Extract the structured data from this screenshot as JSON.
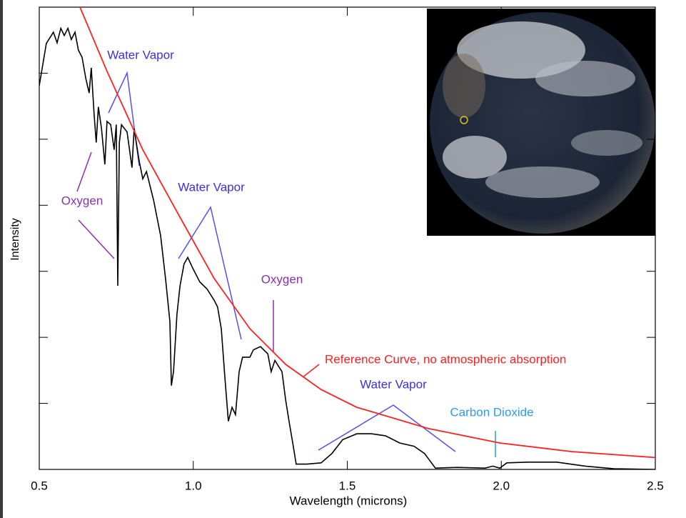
{
  "chart_data": {
    "type": "line",
    "x_label": "Wavelength (microns)",
    "y_label": "Intensity",
    "xlim": [
      0.5,
      2.5
    ],
    "ylim": [
      0,
      7
    ],
    "xticks": [
      0.5,
      {
        "value": 1,
        "label": "1.0"
      },
      1.5,
      {
        "value": 2,
        "label": "2.0"
      },
      2.5
    ],
    "yticks": [
      1,
      2,
      3,
      4,
      5,
      6
    ],
    "series": [
      {
        "color": "#000000",
        "x": [
          0.5,
          0.523,
          0.546,
          0.558,
          0.57,
          0.581,
          0.593,
          0.604,
          0.616,
          0.627,
          0.639,
          0.651,
          0.662,
          0.669,
          0.678,
          0.685,
          0.692,
          0.702,
          0.713,
          0.72,
          0.732,
          0.743,
          0.75,
          0.755,
          0.76,
          0.767,
          0.785,
          0.801,
          0.808,
          0.824,
          0.836,
          0.848,
          0.871,
          0.894,
          0.91,
          0.924,
          0.929,
          0.936,
          0.947,
          0.957,
          0.97,
          0.982,
          0.998,
          1.021,
          1.045,
          1.068,
          1.079,
          1.091,
          1.103,
          1.114,
          1.126,
          1.137,
          1.149,
          1.16,
          1.184,
          1.195,
          1.218,
          1.242,
          1.253,
          1.265,
          1.288,
          1.3,
          1.311,
          1.323,
          1.334,
          1.369,
          1.415,
          1.45,
          1.485,
          1.531,
          1.578,
          1.624,
          1.67,
          1.717,
          1.751,
          1.786,
          1.856,
          1.948,
          1.972,
          1.995,
          2.018,
          2.087,
          2.18,
          2.273,
          2.366,
          2.5
        ],
        "values": [
          5.81,
          6.45,
          6.62,
          6.46,
          6.68,
          6.57,
          6.68,
          6.51,
          6.62,
          6.35,
          6.24,
          5.92,
          5.7,
          6.08,
          5.38,
          4.95,
          5.49,
          5.16,
          4.62,
          5.27,
          5.22,
          4.84,
          5.22,
          2.78,
          4.95,
          5.22,
          5.11,
          4.57,
          5.16,
          4.68,
          4.4,
          4.51,
          4.08,
          3.54,
          2.89,
          2.24,
          1.27,
          1.48,
          2.35,
          2.78,
          3.11,
          3.21,
          3.05,
          2.84,
          2.73,
          2.56,
          2.46,
          2.13,
          1.37,
          0.73,
          0.94,
          0.83,
          1.48,
          1.7,
          1.7,
          1.81,
          1.86,
          1.75,
          1.48,
          1.65,
          1.48,
          1.05,
          0.73,
          0.4,
          0.08,
          0.08,
          0.1,
          0.24,
          0.45,
          0.54,
          0.54,
          0.51,
          0.4,
          0.35,
          0.24,
          0.02,
          0.03,
          0.02,
          0.05,
          0.02,
          0.1,
          0.11,
          0.11,
          0.05,
          0.01,
          0.0
        ]
      },
      {
        "color": "#ff2020",
        "x": [
          0.632,
          0.72,
          0.836,
          0.952,
          1.068,
          1.184,
          1.3,
          1.415,
          1.531,
          1.763,
          1.995,
          2.227,
          2.5
        ],
        "values": [
          7.0,
          6.03,
          4.84,
          3.86,
          2.89,
          2.13,
          1.59,
          1.21,
          0.94,
          0.62,
          0.4,
          0.27,
          0.18
        ]
      }
    ],
    "annotations": [
      {
        "text": "Water Vapor",
        "color": "#3b2ee8"
      },
      {
        "text": "Oxygen",
        "color": "#8a2fb0"
      },
      {
        "text": "Water Vapor",
        "color": "#3b2ee8"
      },
      {
        "text": "Oxygen",
        "color": "#8a2fb0"
      },
      {
        "text": "Reference Curve, no atmospheric absorption",
        "color": "#ff2020"
      },
      {
        "text": "Water Vapor",
        "color": "#3b2ee8"
      },
      {
        "text": "Carbon Dioxide",
        "color": "#2f9af0"
      }
    ]
  }
}
